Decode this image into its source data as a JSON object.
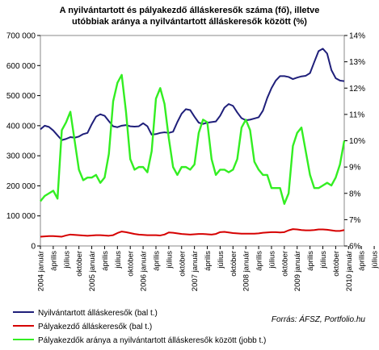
{
  "chart_data": {
    "type": "line",
    "title_lines": [
      "A nyilvántartott és pályakezdő álláskeresők száma (fő), illetve",
      "utóbbiak aránya a nyilvántartott álláskeresők között (%)"
    ],
    "y_left": {
      "min": 0,
      "max": 700000,
      "ticks": [
        0,
        100000,
        200000,
        300000,
        400000,
        500000,
        600000,
        700000
      ],
      "tick_labels": [
        "0",
        "100 000",
        "200 000",
        "300 000",
        "400 000",
        "500 000",
        "600 000",
        "700 000"
      ]
    },
    "y_right": {
      "min": 6,
      "max": 14,
      "ticks": [
        6,
        7,
        8,
        9,
        10,
        11,
        12,
        13,
        14
      ],
      "tick_labels": [
        "6%",
        "7%",
        "8%",
        "9%",
        "10%",
        "11%",
        "12%",
        "13%",
        "14%"
      ]
    },
    "x_labels": [
      "2004 január",
      "április",
      "július",
      "október",
      "2005 január",
      "április",
      "július",
      "október",
      "2006 január",
      "április",
      "július",
      "október",
      "2007 január",
      "április",
      "július",
      "október",
      "2008 január",
      "április",
      "július",
      "október",
      "2009 január",
      "április",
      "július",
      "október",
      "2010 január",
      "április",
      "július"
    ],
    "grid": false,
    "legend_position": "bottom-left",
    "series": [
      {
        "name": "Nyilvántartott álláskeresők (bal t.)",
        "axis": "left",
        "color": "#1f1f7a",
        "values": [
          388000,
          400000,
          396000,
          384000,
          368000,
          352000,
          356000,
          362000,
          360000,
          364000,
          372000,
          376000,
          405000,
          430000,
          438000,
          433000,
          415000,
          398000,
          395000,
          400000,
          402000,
          398000,
          397000,
          398000,
          408000,
          398000,
          370000,
          372000,
          376000,
          378000,
          376000,
          380000,
          412000,
          440000,
          455000,
          452000,
          430000,
          410000,
          406000,
          410000,
          412000,
          414000,
          433000,
          460000,
          472000,
          466000,
          444000,
          425000,
          418000,
          420000,
          424000,
          428000,
          450000,
          492000,
          525000,
          550000,
          565000,
          565000,
          562000,
          555000,
          560000,
          564000,
          566000,
          575000,
          612000,
          648000,
          656000,
          640000,
          585000,
          558000,
          550000,
          548000
        ]
      },
      {
        "name": "Pályakezdő álláskeresők (bal t.)",
        "axis": "left",
        "color": "#d60000",
        "values": [
          31000,
          32000,
          33000,
          33000,
          32000,
          31000,
          35000,
          38000,
          37000,
          36000,
          35000,
          34000,
          35000,
          36000,
          36000,
          35000,
          34000,
          36000,
          43000,
          48000,
          46000,
          43000,
          40000,
          38000,
          37000,
          36000,
          36000,
          36000,
          35000,
          38000,
          45000,
          44000,
          42000,
          40000,
          39000,
          38000,
          39000,
          40000,
          40000,
          39000,
          38000,
          40000,
          46000,
          47000,
          45000,
          43000,
          42000,
          41000,
          41000,
          41000,
          41000,
          42000,
          44000,
          45000,
          46000,
          46000,
          45000,
          46000,
          52000,
          56000,
          55000,
          53000,
          52000,
          52000,
          53000,
          55000,
          55000,
          54000,
          52000,
          50000,
          50000,
          53000
        ]
      },
      {
        "name": "Pályakezdők aránya a nyilvántartott álláskeresők között (jobb t.)",
        "axis": "right",
        "color": "#33ee22",
        "values": [
          7.7,
          7.9,
          8.0,
          8.1,
          7.8,
          10.4,
          10.7,
          11.1,
          10.0,
          8.9,
          8.5,
          8.6,
          8.6,
          8.7,
          8.4,
          8.6,
          9.5,
          11.5,
          12.2,
          12.5,
          11.1,
          9.3,
          8.9,
          9.0,
          9.0,
          8.8,
          9.6,
          11.6,
          12.0,
          11.4,
          10.1,
          9.0,
          8.7,
          9.0,
          9.0,
          8.9,
          9.1,
          10.3,
          10.8,
          10.7,
          9.3,
          8.7,
          8.9,
          8.9,
          8.8,
          8.9,
          9.3,
          10.5,
          10.8,
          10.4,
          9.2,
          8.9,
          8.7,
          8.7,
          8.2,
          8.2,
          8.2,
          7.6,
          8.0,
          9.8,
          10.3,
          10.5,
          9.6,
          8.7,
          8.2,
          8.2,
          8.3,
          8.4,
          8.3,
          8.6,
          9.1,
          10.0
        ]
      }
    ],
    "source": "Forrás: ÁFSZ, Portfolio.hu"
  }
}
